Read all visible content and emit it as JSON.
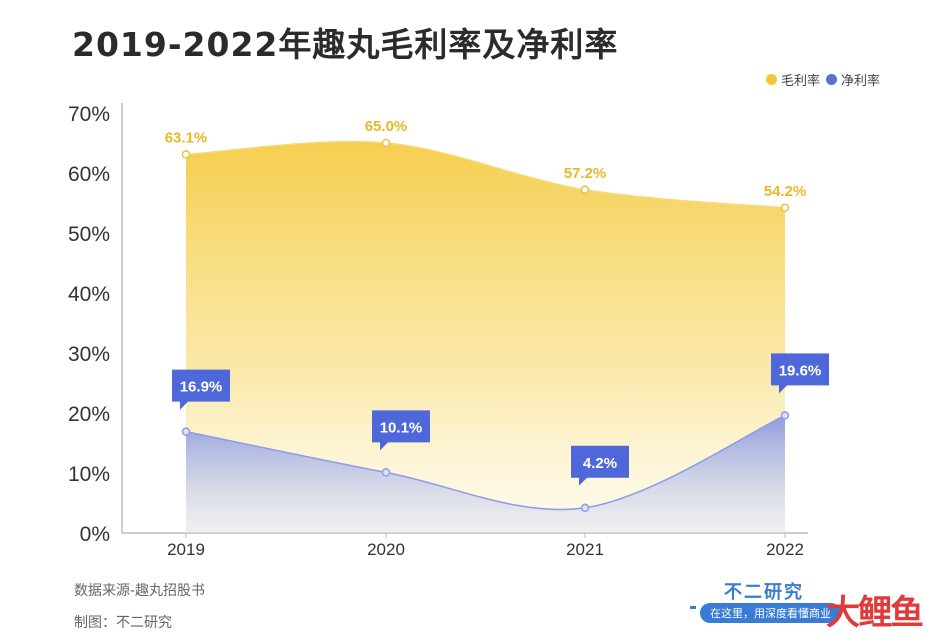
{
  "title": "2019-2022年趣丸毛利率及净利率",
  "legend": {
    "items": [
      {
        "label": "毛利率",
        "color": "#f2c53d"
      },
      {
        "label": "净利率",
        "color": "#5a6fd6"
      }
    ]
  },
  "footer": {
    "source": "数据来源-趣丸招股书",
    "maker": "制图：不二研究",
    "brand": "不二研究",
    "slogan": "在这里，用深度看懂商业",
    "logo": [
      "大",
      "鲤",
      "鱼"
    ]
  },
  "chart_data": {
    "type": "area",
    "title": "2019-2022年趣丸毛利率及净利率",
    "categories": [
      "2019",
      "2020",
      "2021",
      "2022"
    ],
    "ylim": [
      0,
      70
    ],
    "yticks": [
      "0%",
      "10%",
      "20%",
      "30%",
      "40%",
      "50%",
      "60%",
      "70%"
    ],
    "ytick_values": [
      0,
      10,
      20,
      30,
      40,
      50,
      60,
      70
    ],
    "grid": false,
    "legend_position": "top-right",
    "series": [
      {
        "name": "毛利率",
        "values": [
          63.1,
          65.0,
          57.2,
          54.2
        ],
        "labels": [
          "63.1%",
          "65.0%",
          "57.2%",
          "54.2%"
        ],
        "color": "#f2c53d"
      },
      {
        "name": "净利率",
        "values": [
          16.9,
          10.1,
          4.2,
          19.6
        ],
        "labels": [
          "16.9%",
          "10.1%",
          "4.2%",
          "19.6%"
        ],
        "color": "#5a6fd6"
      }
    ]
  }
}
